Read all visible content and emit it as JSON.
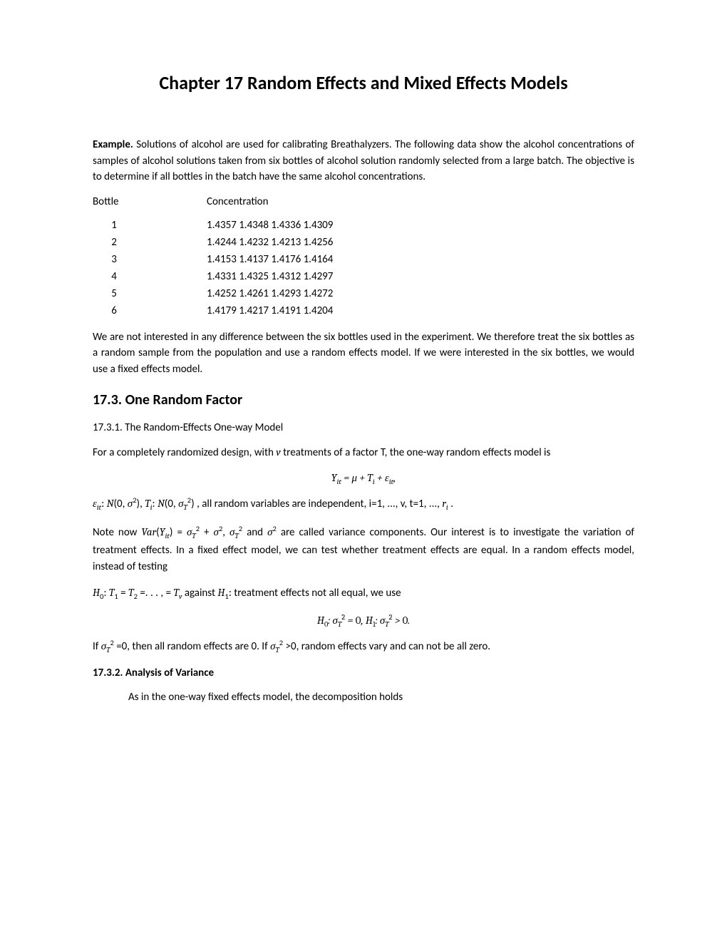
{
  "chapter_title": "Chapter 17 Random Effects and Mixed Effects Models",
  "example_label": "Example.",
  "example_text": " Solutions of alcohol are used for calibrating Breathalyzers. The following data show the alcohol concentrations of samples of alcohol solutions taken from six bottles of alcohol solution randomly selected from a large batch. The objective is to determine if all bottles in the batch have the same alcohol concentrations.",
  "table_headers": {
    "col1": "Bottle",
    "col2": "Concentration"
  },
  "table_rows": [
    {
      "bottle": "1",
      "values": "1.4357 1.4348 1.4336 1.4309"
    },
    {
      "bottle": "2",
      "values": "1.4244 1.4232 1.4213 1.4256"
    },
    {
      "bottle": "3",
      "values": "1.4153 1.4137 1.4176 1.4164"
    },
    {
      "bottle": "4",
      "values": "1.4331 1.4325 1.4312 1.4297"
    },
    {
      "bottle": "5",
      "values": "1.4252 1.4261 1.4293 1.4272"
    },
    {
      "bottle": "6",
      "values": "1.4179 1.4217 1.4191 1.4204"
    }
  ],
  "para_interpretation": "We are not interested in any difference between the six bottles used in the experiment. We therefore treat the six bottles as a random sample from the population and use a random effects model. If we were interested in the six bottles, we would use a fixed effects model.",
  "section_17_3": "17.3. One Random Factor",
  "subsection_17_3_1": "17.3.1. The Random-Effects One-way Model",
  "para_model_intro_1": "For a completely randomized design, with  ",
  "para_model_intro_v": "v",
  "para_model_intro_2": " treatments of a factor T, the one-way random effects model is",
  "eq_model": "Y",
  "eq_model_sub": "it",
  "eq_model_mid": " = μ + T",
  "eq_model_sub2": "i",
  "eq_model_mid2": " + ε",
  "eq_model_sub3": "it",
  "eq_model_end": ",",
  "para_distributions": " , all random variables are independent, i=1, ..., v, t=1, ..., ",
  "para_distributions_end": " .",
  "para_note_now": "Note now ",
  "para_variance_components": " are called variance components. Our interest is to investigate the variation of treatment effects. In a fixed effect model, we can test whether treatment effects are equal. In a random effects model, instead of testing",
  "para_h0_against": "  against ",
  "para_h1_text": ":  treatment effects not all equal, we use",
  "para_if_sigma": " =0, then all random effects are 0. If ",
  "para_if_sigma_end": "0, random effects vary and can not be all zero.",
  "subsection_17_3_2": " 17.3.2. Analysis of Variance",
  "para_decomposition": "As in the one-way fixed effects model, the decomposition holds"
}
